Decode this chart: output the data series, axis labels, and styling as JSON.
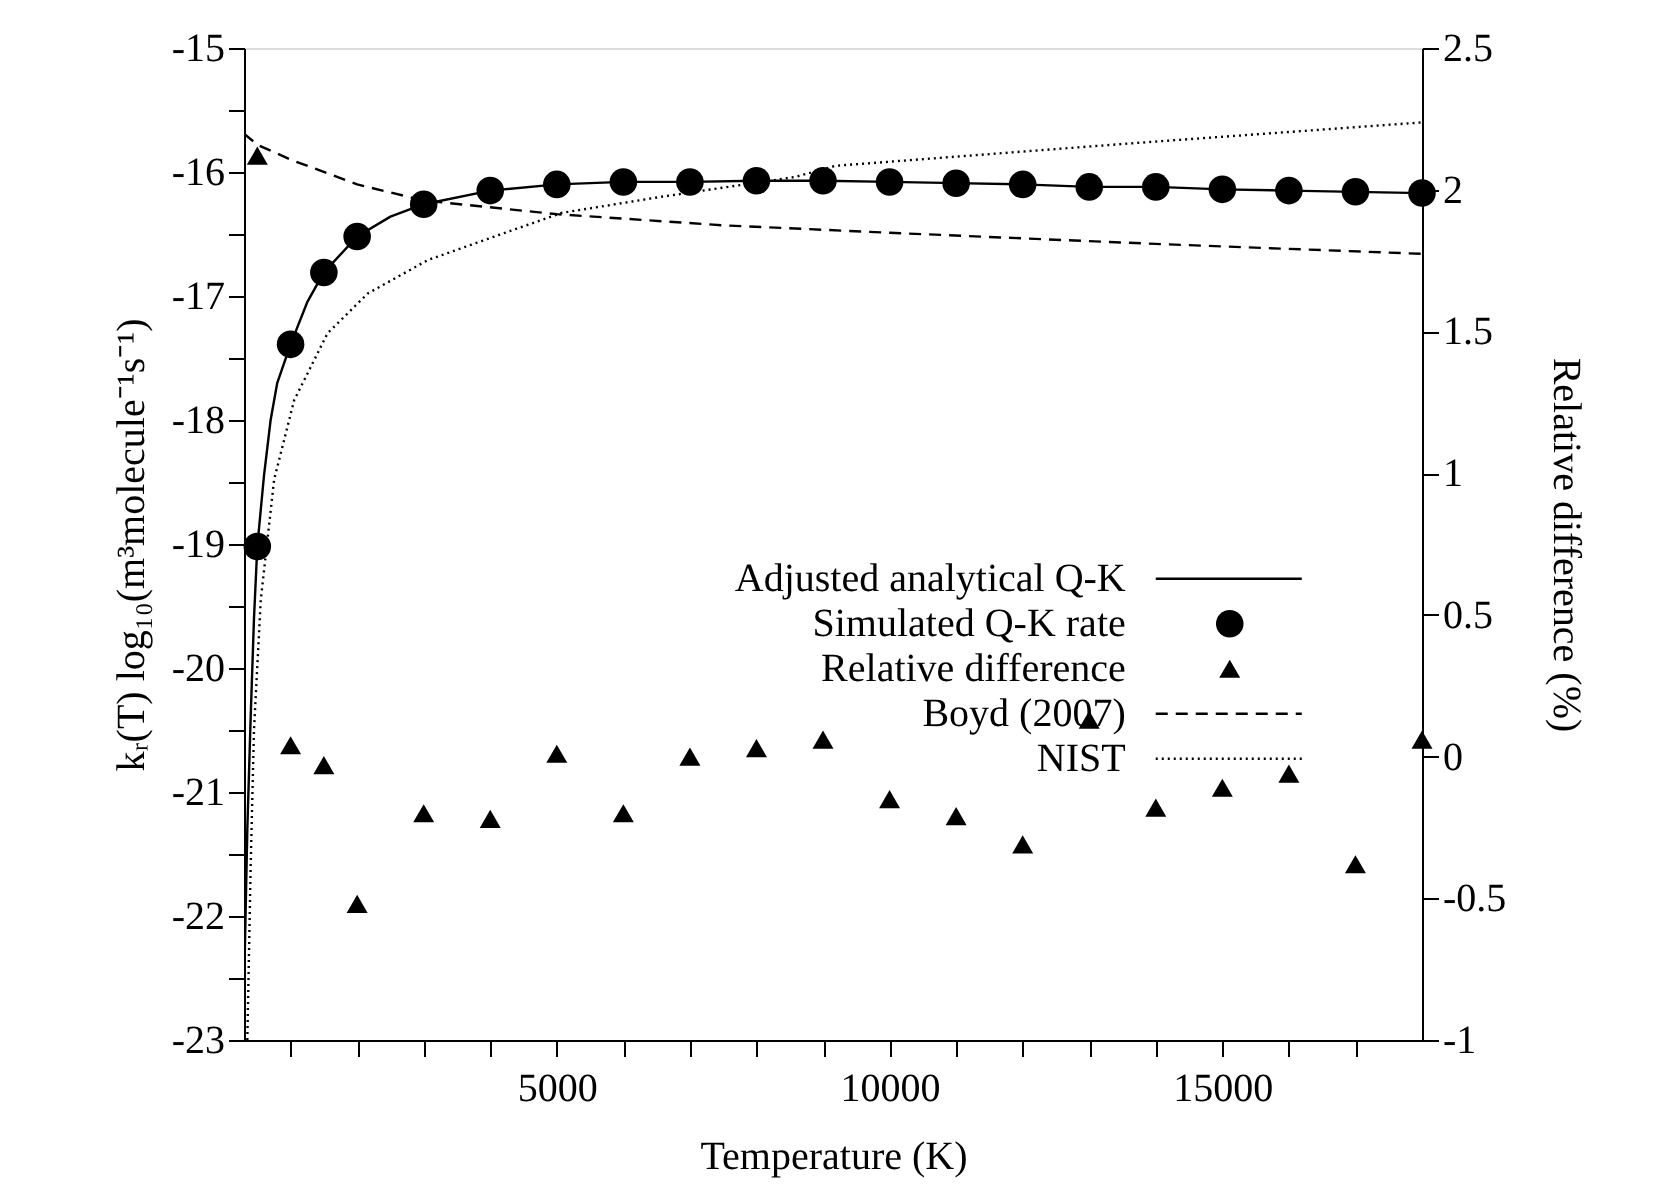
{
  "chart_data": {
    "type": "line",
    "xlabel": "Temperature (K)",
    "ylabel": "kᵣ(T) log₁₀(m³molecule⁻¹s⁻¹)",
    "y2label": "Relative difference (%)",
    "xlim": [
      300,
      18000
    ],
    "xticks": [
      {
        "value": 1000,
        "label": null
      },
      {
        "value": 2000,
        "label": null
      },
      {
        "value": 3000,
        "label": null
      },
      {
        "value": 4000,
        "label": null
      },
      5000,
      {
        "value": 6000,
        "label": null
      },
      {
        "value": 7000,
        "label": null
      },
      {
        "value": 8000,
        "label": null
      },
      {
        "value": 9000,
        "label": null
      },
      10000,
      {
        "value": 11000,
        "label": null
      },
      {
        "value": 12000,
        "label": null
      },
      {
        "value": 13000,
        "label": null
      },
      {
        "value": 14000,
        "label": null
      },
      15000,
      {
        "value": 16000,
        "label": null
      },
      {
        "value": 17000,
        "label": null
      }
    ],
    "ylim": [
      -23,
      -15
    ],
    "yticks": [
      -23,
      {
        "value": -22.5,
        "label": null
      },
      -22,
      {
        "value": -21.5,
        "label": null
      },
      -21,
      {
        "value": -20.5,
        "label": null
      },
      -20,
      {
        "value": -19.5,
        "label": null
      },
      -19,
      {
        "value": -18.5,
        "label": null
      },
      -18,
      {
        "value": -17.5,
        "label": null
      },
      -17,
      {
        "value": -16.5,
        "label": null
      },
      -16,
      {
        "value": -15.5,
        "label": null
      },
      -15
    ],
    "y2lim": [
      -1,
      2.5
    ],
    "y2ticks": [
      -1,
      -0.5,
      0,
      0.5,
      1,
      1.5,
      2,
      2.5
    ],
    "legend": "right",
    "grid": false,
    "series": [
      {
        "name": "Adjusted analytical Q-K",
        "line_style": "solid",
        "color": "#000000",
        "x": [
          300,
          350,
          400,
          450,
          500,
          600,
          700,
          800,
          1000,
          1250,
          1500,
          2000,
          2500,
          3000,
          4000,
          5000,
          6000,
          7000,
          8000,
          9000,
          10000,
          11000,
          12000,
          13000,
          14000,
          15000,
          16000,
          17000,
          18000
        ],
        "values": [
          -22.6,
          -21.3,
          -20.4,
          -19.6,
          -19.02,
          -18.45,
          -18.0,
          -17.7,
          -17.39,
          -17.05,
          -16.81,
          -16.52,
          -16.36,
          -16.26,
          -16.15,
          -16.1,
          -16.08,
          -16.08,
          -16.07,
          -16.07,
          -16.08,
          -16.09,
          -16.1,
          -16.12,
          -16.12,
          -16.14,
          -16.15,
          -16.16,
          -16.17
        ]
      },
      {
        "name": "Simulated Q-K rate",
        "type": "scatter",
        "marker": "circle",
        "color": "#000000",
        "x": [
          500,
          1000,
          1500,
          2000,
          3000,
          4000,
          5000,
          6000,
          7000,
          8000,
          9000,
          10000,
          11000,
          12000,
          13000,
          14000,
          15000,
          16000,
          17000,
          18000
        ],
        "values": [
          -19.02,
          -17.39,
          -16.81,
          -16.52,
          -16.26,
          -16.15,
          -16.1,
          -16.08,
          -16.08,
          -16.07,
          -16.07,
          -16.08,
          -16.09,
          -16.1,
          -16.12,
          -16.12,
          -16.14,
          -16.15,
          -16.16,
          -16.17
        ]
      },
      {
        "name": "Relative difference",
        "type": "scatter",
        "marker": "triangle",
        "axis": "y2",
        "color": "#000000",
        "x": [
          500,
          1000,
          1500,
          2000,
          3000,
          4000,
          5000,
          6000,
          7000,
          8000,
          9000,
          10000,
          11000,
          12000,
          13000,
          14000,
          15000,
          16000,
          17000,
          18000
        ],
        "values": [
          2.12,
          0.04,
          -0.03,
          -0.52,
          -0.2,
          -0.22,
          0.01,
          -0.2,
          0.0,
          0.03,
          0.06,
          -0.15,
          -0.21,
          -0.31,
          0.13,
          -0.18,
          -0.11,
          -0.06,
          -0.38,
          0.06
        ]
      },
      {
        "name": "Boyd (2007)",
        "line_style": "dashed",
        "color": "#000000",
        "x": [
          300,
          500,
          1000,
          2000,
          3000,
          5000,
          7500,
          10000,
          14000,
          18000
        ],
        "values": [
          -15.69,
          -15.78,
          -15.9,
          -16.1,
          -16.23,
          -16.34,
          -16.43,
          -16.49,
          -16.58,
          -16.66
        ]
      },
      {
        "name": "NIST",
        "line_style": "dotted",
        "color": "#000000",
        "x": [
          350,
          400,
          450,
          552,
          753,
          1054,
          1556,
          2159,
          3062,
          4066,
          5070,
          6570,
          8580,
          9190,
          13600,
          18000
        ],
        "values": [
          -23,
          -21.6,
          -20.5,
          -19.45,
          -18.48,
          -17.84,
          -17.3,
          -16.98,
          -16.71,
          -16.52,
          -16.33,
          -16.2,
          -16.04,
          -15.95,
          -15.77,
          -15.6
        ]
      }
    ]
  }
}
